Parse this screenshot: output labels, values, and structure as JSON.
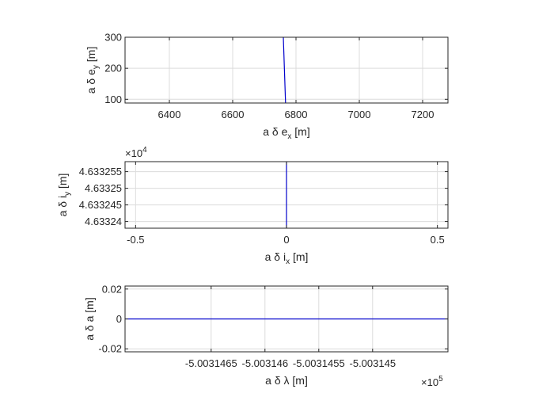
{
  "chart_data": [
    {
      "type": "line",
      "xlim": [
        6260,
        7280
      ],
      "ylim": [
        88,
        300
      ],
      "xticks": [
        6400,
        6600,
        6800,
        7000,
        7200
      ],
      "xtick_labels": [
        "6400",
        "6600",
        "6800",
        "7000",
        "7200"
      ],
      "yticks": [
        100,
        200,
        300
      ],
      "ytick_labels": [
        "100",
        "200",
        "300"
      ],
      "xlabel": {
        "main": "a δ e",
        "sub": "x",
        "unit": " [m]"
      },
      "ylabel": {
        "main": "a δ e",
        "sub": "y",
        "unit": " [m]"
      },
      "grid": true,
      "series": [
        {
          "x": [
            6760,
            6767
          ],
          "y": [
            300,
            88
          ]
        }
      ],
      "color": "#0000cc"
    },
    {
      "type": "line",
      "xlim": [
        -0.535,
        0.535
      ],
      "ylim": [
        4.633238,
        4.633258
      ],
      "xticks": [
        -0.5,
        0,
        0.5
      ],
      "xtick_labels": [
        "-0.5",
        "0",
        "0.5"
      ],
      "yticks": [
        4.63324,
        4.633245,
        4.63325,
        4.633255
      ],
      "ytick_labels": [
        "4.63324",
        "4.633245",
        "4.63325",
        "4.633255"
      ],
      "exponent": "×10",
      "exponent_power": "4",
      "xlabel": {
        "main": "a δ i",
        "sub": "x",
        "unit": " [m]"
      },
      "ylabel": {
        "main": "a δ i",
        "sub": "y",
        "unit": " [m]"
      },
      "grid": true,
      "series": [
        {
          "x": [
            0,
            0
          ],
          "y": [
            4.633238,
            4.633258
          ]
        }
      ],
      "color": "#0000cc"
    },
    {
      "type": "line",
      "xlim": [
        -5.0031473,
        -5.0031443
      ],
      "ylim": [
        -0.022,
        0.022
      ],
      "xticks": [
        -5.0031465,
        -5.003146,
        -5.0031455,
        -5.003145
      ],
      "xtick_labels": [
        "-5.0031465",
        "-5.003146",
        "-5.0031455",
        "-5.003145"
      ],
      "yticks": [
        -0.02,
        0,
        0.02
      ],
      "ytick_labels": [
        "-0.02",
        "0",
        "0.02"
      ],
      "exponent": "×10",
      "exponent_power": "5",
      "xlabel": {
        "main": "a δ λ",
        "sub": "",
        "unit": " [m]"
      },
      "ylabel": {
        "main": "a δ a",
        "sub": "",
        "unit": " [m]"
      },
      "grid": true,
      "series": [
        {
          "x": [
            -5.0031473,
            -5.0031443
          ],
          "y": [
            0,
            0
          ]
        }
      ],
      "color": "#0000cc"
    }
  ]
}
